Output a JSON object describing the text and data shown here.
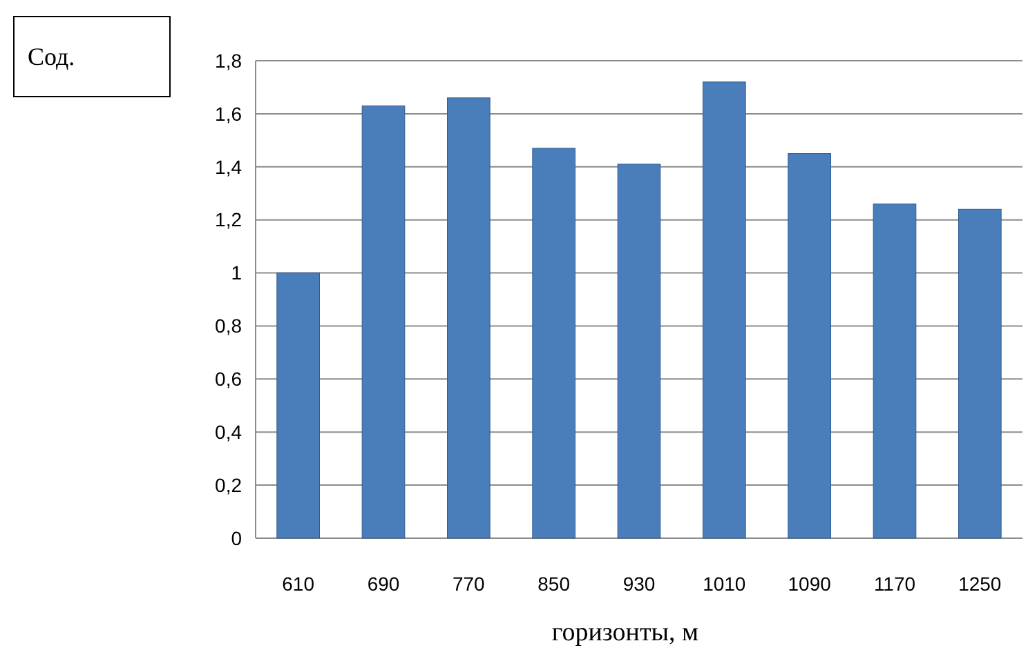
{
  "chart_data": {
    "type": "bar",
    "annotations": [
      "Сод."
    ],
    "xlabel": "горизонты, м",
    "categories": [
      "610",
      "690",
      "770",
      "850",
      "930",
      "1010",
      "1090",
      "1170",
      "1250"
    ],
    "values": [
      1.0,
      1.63,
      1.66,
      1.47,
      1.41,
      1.72,
      1.45,
      1.26,
      1.24
    ],
    "color": "#4a7ebb",
    "ylim": [
      0,
      1.8
    ],
    "yticks": [
      {
        "value": 0,
        "label": "0"
      },
      {
        "value": 0.2,
        "label": "0,2"
      },
      {
        "value": 0.4,
        "label": "0,4"
      },
      {
        "value": 0.6,
        "label": "0,6"
      },
      {
        "value": 0.8,
        "label": "0,8"
      },
      {
        "value": 1,
        "label": "1"
      },
      {
        "value": 1.2,
        "label": "1,2"
      },
      {
        "value": 1.4,
        "label": "1,4"
      },
      {
        "value": 1.6,
        "label": "1,6"
      },
      {
        "value": 1.8,
        "label": "1,8"
      }
    ],
    "grid": true
  }
}
